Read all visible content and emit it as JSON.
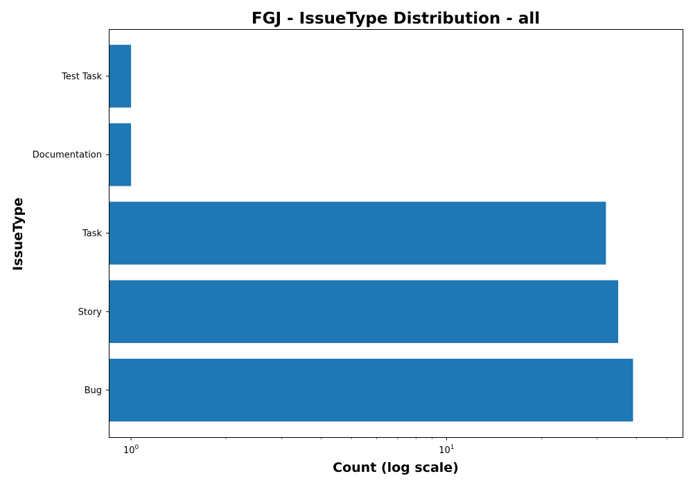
{
  "chart_data": {
    "type": "bar",
    "orientation": "horizontal",
    "title": "FGJ - IssueType Distribution - all",
    "xlabel": "Count (log scale)",
    "ylabel": "IssueType",
    "x_scale": "log",
    "xlim": [
      0.85,
      56
    ],
    "x_major_ticks": [
      {
        "value": 1,
        "base": "10",
        "exp": "0"
      },
      {
        "value": 10,
        "base": "10",
        "exp": "1"
      }
    ],
    "categories": [
      "Bug",
      "Story",
      "Task",
      "Documentation",
      "Test Task"
    ],
    "values": [
      39,
      35,
      32,
      1,
      1
    ],
    "bar_color": "#1f77b4",
    "grid": false,
    "legend": "none"
  }
}
